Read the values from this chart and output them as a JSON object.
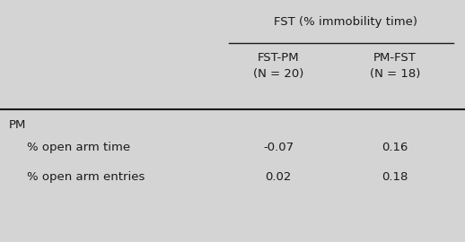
{
  "background_color": "#d4d4d4",
  "header_main": "FST (% immobility time)",
  "col1_header_line1": "FST-PM",
  "col1_header_line2": "(N = 20)",
  "col2_header_line1": "PM-FST",
  "col2_header_line2": "(N = 18)",
  "section_label": "PM",
  "rows": [
    {
      "label": "% open arm time",
      "col1": "-0.07",
      "col2": "0.16"
    },
    {
      "label": "% open arm entries",
      "col1": "0.02",
      "col2": "0.18"
    }
  ],
  "font_family": "DejaVu Sans",
  "fontsize_main_header": 9.5,
  "fontsize_body": 9.5,
  "text_color": "#1a1a1a"
}
